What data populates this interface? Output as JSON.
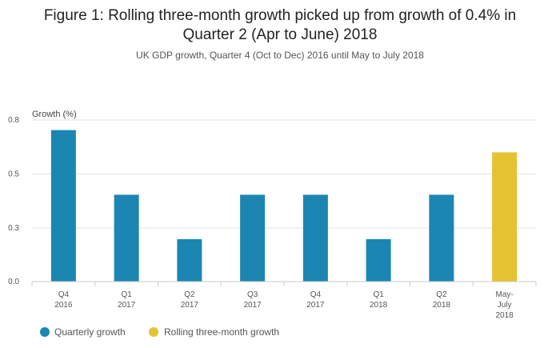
{
  "title": "Figure 1: Rolling three-month growth picked up from growth of 0.4% in Quarter 2 (Apr to June) 2018",
  "subtitle": "UK GDP growth, Quarter 4 (Oct to Dec) 2016 until May to July 2018",
  "colors": {
    "quarterly": "#1b86b2",
    "rolling": "#e4c232"
  },
  "chart_data": {
    "type": "bar",
    "title": "Figure 1: Rolling three-month growth picked up from growth of 0.4% in Quarter 2 (Apr to June) 2018",
    "subtitle": "UK GDP growth, Quarter 4 (Oct to Dec) 2016 until May to July 2018",
    "ylabel": "Growth (%)",
    "xlabel": "",
    "ylim": [
      0,
      0.8
    ],
    "yticks": [
      "0.0",
      "0.3",
      "0.5",
      "0.8"
    ],
    "ytick_values": [
      0,
      0.266,
      0.533,
      0.8
    ],
    "grid": true,
    "legend_position": "bottom-left",
    "categories": [
      [
        "Q4",
        "2016"
      ],
      [
        "Q1",
        "2017"
      ],
      [
        "Q2",
        "2017"
      ],
      [
        "Q3",
        "2017"
      ],
      [
        "Q4",
        "2017"
      ],
      [
        "Q1",
        "2018"
      ],
      [
        "Q2",
        "2018"
      ],
      [
        "May-",
        "July",
        "2018"
      ]
    ],
    "series": [
      {
        "name": "Quarterly growth",
        "values": [
          0.75,
          0.43,
          0.21,
          0.43,
          0.43,
          0.21,
          0.43,
          null
        ]
      },
      {
        "name": "Rolling three-month growth",
        "values": [
          null,
          null,
          null,
          null,
          null,
          null,
          null,
          0.64
        ]
      }
    ]
  }
}
